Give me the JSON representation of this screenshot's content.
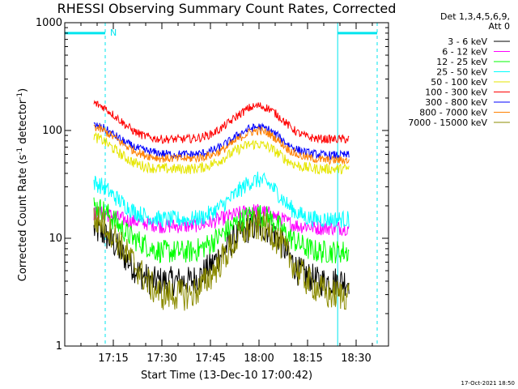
{
  "chart_data": {
    "type": "line",
    "title": "RHESSI Observing Summary Count Rates, Corrected",
    "xlabel": "Start Time (13-Dec-10 17:00:42)",
    "ylabel_main": "Corrected Count Rate (s",
    "ylabel_sup1": "-1",
    "ylabel_mid": " detector",
    "ylabel_sup2": "-1",
    "ylabel_end": ")",
    "yscale": "log",
    "ylim": [
      1,
      1000
    ],
    "xlim_minutes": [
      0,
      100
    ],
    "x_ticks": [
      {
        "label": "17:15",
        "minute": 15
      },
      {
        "label": "17:30",
        "minute": 30
      },
      {
        "label": "17:45",
        "minute": 45
      },
      {
        "label": "18:00",
        "minute": 60
      },
      {
        "label": "18:15",
        "minute": 75
      },
      {
        "label": "18:30",
        "minute": 90
      }
    ],
    "y_ticks": [
      {
        "label": "1",
        "value": 1
      },
      {
        "label": "10",
        "value": 10
      },
      {
        "label": "100",
        "value": 100
      },
      {
        "label": "1000",
        "value": 1000
      }
    ],
    "legend_header": [
      "Det 1,3,4,5,6,9,",
      "Att 0"
    ],
    "footer_stamp": "17-Oct-2021 18:50",
    "attenuator_flag": "N",
    "data_start_minute": 9,
    "data_end_minute": 88,
    "markers": {
      "vlines_solid_minutes": [
        0,
        84.3
      ],
      "vlines_dashed_minutes": [
        12.5,
        96.5
      ],
      "bars": [
        {
          "from": 0,
          "to": 12.5
        },
        {
          "from": 84.3,
          "to": 96.5
        }
      ],
      "color": "#00e5ee"
    },
    "series": [
      {
        "name": "3 - 6 keV",
        "color": "#000000",
        "x": [
          9,
          12,
          15,
          18,
          21,
          24,
          27,
          30,
          33,
          36,
          39,
          42,
          45,
          48,
          51,
          54,
          57,
          60,
          63,
          66,
          69,
          72,
          75,
          78,
          81,
          84,
          87
        ],
        "y": [
          12,
          11,
          9,
          7,
          5.5,
          4.5,
          4,
          4,
          4,
          4,
          4,
          4.5,
          5.5,
          7,
          9,
          11,
          12.5,
          13,
          12,
          10,
          7,
          5,
          4.5,
          4,
          4,
          4,
          4
        ]
      },
      {
        "name": "6 - 12 keV",
        "color": "#ff00ff",
        "x": [
          9,
          12,
          15,
          18,
          21,
          24,
          27,
          30,
          33,
          36,
          39,
          42,
          45,
          48,
          51,
          54,
          57,
          60,
          63,
          66,
          69,
          72,
          75,
          78,
          81,
          84,
          87
        ],
        "y": [
          17,
          17,
          16,
          15,
          14.5,
          14,
          13.5,
          13,
          13,
          13,
          13,
          13.5,
          14,
          15,
          16,
          17,
          18,
          18,
          17,
          15.5,
          14,
          13,
          13,
          12.5,
          12.5,
          12.5,
          12.5
        ]
      },
      {
        "name": "12 - 25 keV",
        "color": "#00ff00",
        "x": [
          9,
          12,
          15,
          18,
          21,
          24,
          27,
          30,
          33,
          36,
          39,
          42,
          45,
          48,
          51,
          54,
          57,
          60,
          63,
          66,
          69,
          72,
          75,
          78,
          81,
          84,
          87
        ],
        "y": [
          20,
          18,
          15,
          12,
          10,
          9,
          8,
          7.5,
          7.5,
          7.5,
          7.5,
          8,
          9,
          10.5,
          12.5,
          14.5,
          16,
          16.5,
          15.5,
          13,
          10.5,
          9,
          8,
          7.5,
          7.5,
          7.5,
          7.5
        ]
      },
      {
        "name": "25 - 50 keV",
        "color": "#00ffff",
        "x": [
          9,
          12,
          15,
          18,
          21,
          24,
          27,
          30,
          33,
          36,
          39,
          42,
          45,
          48,
          51,
          54,
          57,
          60,
          63,
          66,
          69,
          72,
          75,
          78,
          81,
          84,
          87
        ],
        "y": [
          33,
          30,
          25,
          21,
          18,
          16.5,
          15.5,
          15,
          15,
          15,
          15,
          15.5,
          17,
          19.5,
          23,
          28,
          33,
          35,
          32,
          26,
          20,
          17,
          15.5,
          15,
          15,
          15,
          15
        ]
      },
      {
        "name": "50 - 100 keV",
        "color": "#e6e600",
        "x": [
          9,
          12,
          15,
          18,
          21,
          24,
          27,
          30,
          33,
          36,
          39,
          42,
          45,
          48,
          51,
          54,
          57,
          60,
          63,
          66,
          69,
          72,
          75,
          78,
          81,
          84,
          87
        ],
        "y": [
          88,
          80,
          68,
          58,
          51,
          47,
          45,
          44,
          44,
          44,
          44,
          45,
          48,
          53,
          60,
          68,
          74,
          75,
          70,
          61,
          52,
          47,
          45,
          44,
          44,
          44,
          44
        ]
      },
      {
        "name": "100 - 300 keV",
        "color": "#ff0000",
        "x": [
          9,
          12,
          15,
          18,
          21,
          24,
          27,
          30,
          33,
          36,
          39,
          42,
          45,
          48,
          51,
          54,
          57,
          60,
          63,
          66,
          69,
          72,
          75,
          78,
          81,
          84,
          87
        ],
        "y": [
          180,
          165,
          140,
          118,
          100,
          90,
          85,
          83,
          83,
          83,
          84,
          86,
          92,
          103,
          120,
          142,
          162,
          170,
          160,
          137,
          112,
          95,
          87,
          84,
          83,
          83,
          83
        ]
      },
      {
        "name": "300 - 800 keV",
        "color": "#0000ff",
        "x": [
          9,
          12,
          15,
          18,
          21,
          24,
          27,
          30,
          33,
          36,
          39,
          42,
          45,
          48,
          51,
          54,
          57,
          60,
          63,
          66,
          69,
          72,
          75,
          78,
          81,
          84,
          87
        ],
        "y": [
          112,
          105,
          92,
          80,
          71,
          66,
          63,
          61,
          60,
          60,
          60,
          61,
          64,
          70,
          80,
          93,
          104,
          108,
          102,
          88,
          74,
          66,
          62,
          60,
          59,
          59,
          59
        ]
      },
      {
        "name": "800 - 7000 keV",
        "color": "#ff8000",
        "x": [
          9,
          12,
          15,
          18,
          21,
          24,
          27,
          30,
          33,
          36,
          39,
          42,
          45,
          48,
          51,
          54,
          57,
          60,
          63,
          66,
          69,
          72,
          75,
          78,
          81,
          84,
          87
        ],
        "y": [
          108,
          100,
          87,
          75,
          66,
          60,
          57,
          55,
          55,
          55,
          55,
          56,
          59,
          64,
          73,
          85,
          96,
          100,
          94,
          81,
          67,
          59,
          56,
          54,
          53,
          53,
          53
        ]
      },
      {
        "name": "7000 - 15000 keV",
        "color": "#8b8b00",
        "x": [
          9,
          12,
          15,
          18,
          21,
          24,
          27,
          30,
          33,
          36,
          39,
          42,
          45,
          48,
          51,
          54,
          57,
          60,
          63,
          66,
          69,
          72,
          75,
          78,
          81,
          84,
          87
        ],
        "y": [
          15,
          14,
          11,
          8,
          6,
          4.5,
          3.5,
          3,
          3,
          3,
          3,
          3.5,
          4.5,
          6,
          8,
          10.5,
          12.5,
          13,
          12,
          9.5,
          7,
          5,
          4,
          3.5,
          3,
          3,
          3
        ]
      }
    ]
  }
}
